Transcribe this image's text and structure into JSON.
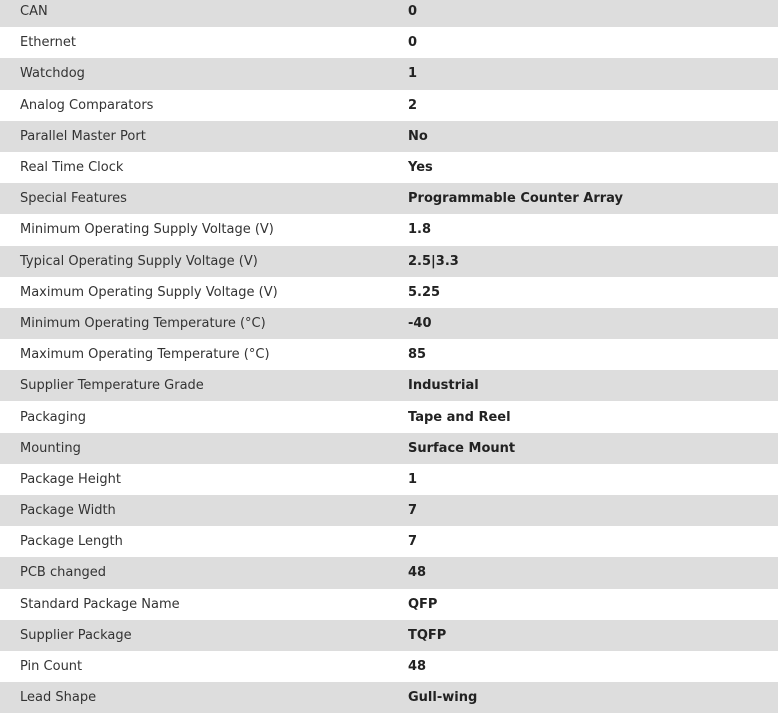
{
  "specs": [
    {
      "label": "CAN",
      "value": "0"
    },
    {
      "label": "Ethernet",
      "value": "0"
    },
    {
      "label": "Watchdog",
      "value": "1"
    },
    {
      "label": "Analog Comparators",
      "value": "2"
    },
    {
      "label": "Parallel Master Port",
      "value": "No"
    },
    {
      "label": "Real Time Clock",
      "value": "Yes"
    },
    {
      "label": "Special Features",
      "value": "Programmable Counter Array"
    },
    {
      "label": "Minimum Operating Supply Voltage (V)",
      "value": "1.8"
    },
    {
      "label": "Typical Operating Supply Voltage (V)",
      "value": "2.5|3.3"
    },
    {
      "label": "Maximum Operating Supply Voltage (V)",
      "value": "5.25"
    },
    {
      "label": "Minimum Operating Temperature (°C)",
      "value": "-40"
    },
    {
      "label": "Maximum Operating Temperature (°C)",
      "value": "85"
    },
    {
      "label": "Supplier Temperature Grade",
      "value": "Industrial"
    },
    {
      "label": "Packaging",
      "value": "Tape and Reel"
    },
    {
      "label": "Mounting",
      "value": "Surface Mount"
    },
    {
      "label": "Package Height",
      "value": "1"
    },
    {
      "label": "Package Width",
      "value": "7"
    },
    {
      "label": "Package Length",
      "value": "7"
    },
    {
      "label": "PCB changed",
      "value": "48"
    },
    {
      "label": "Standard Package Name",
      "value": "QFP"
    },
    {
      "label": "Supplier Package",
      "value": "TQFP"
    },
    {
      "label": "Pin Count",
      "value": "48"
    },
    {
      "label": "Lead Shape",
      "value": "Gull-wing"
    }
  ]
}
